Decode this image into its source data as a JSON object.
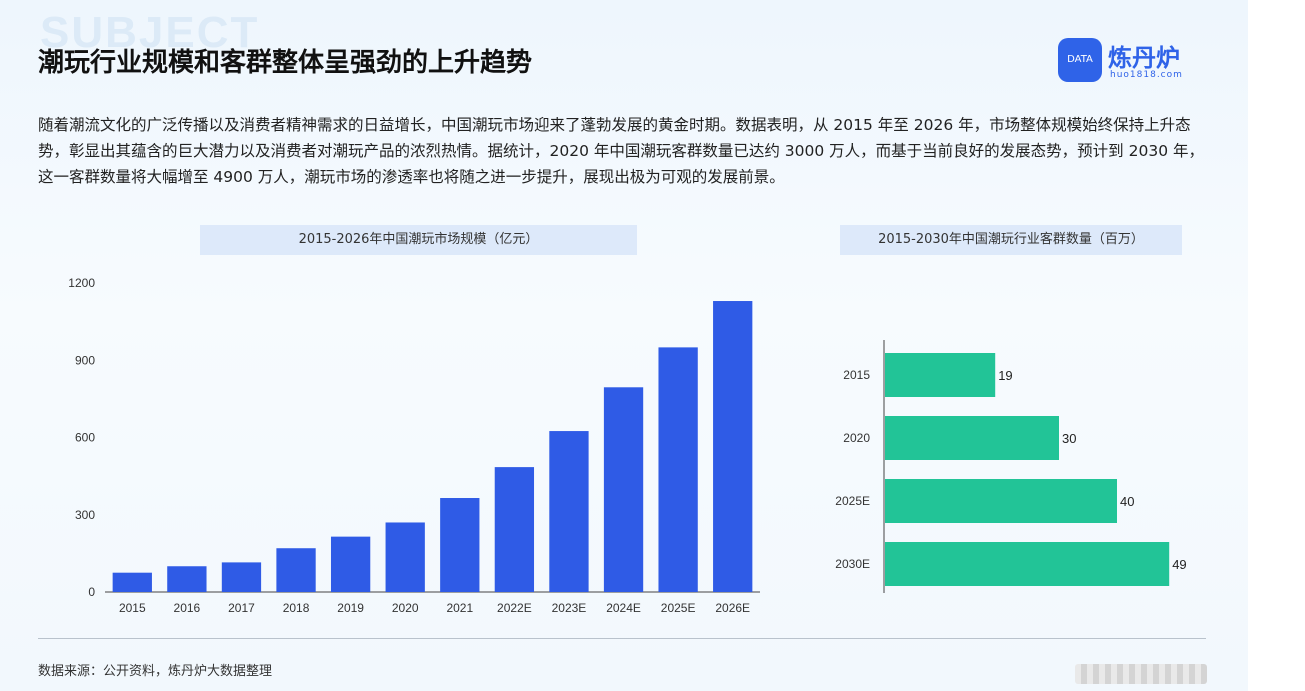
{
  "header": {
    "title": "潮玩行业规模和客群整体呈强劲的上升趋势",
    "bg_word": "SUBJECT"
  },
  "logo": {
    "badge": "DATA",
    "name": "炼丹炉",
    "url": "huo1818.com"
  },
  "intro": "随着潮流文化的广泛传播以及消费者精神需求的日益增长，中国潮玩市场迎来了蓬勃发展的黄金时期。数据表明，从 2015 年至 2026 年，市场整体规模始终保持上升态势，彰显出其蕴含的巨大潜力以及消费者对潮玩产品的浓烈热情。据统计，2020 年中国潮玩客群数量已达约 3000 万人，而基于当前良好的发展态势，预计到 2030 年，这一客群数量将大幅增至 4900 万人，潮玩市场的渗透率也将随之进一步提升，展现出极为可观的发展前景。",
  "footer": {
    "source": "数据来源：公开资料，炼丹炉大数据整理"
  },
  "colors": {
    "bar": "#2f5be6",
    "hbar": "#22c497",
    "brand": "#2f63e8"
  },
  "chart_data": [
    {
      "type": "bar",
      "title": "2015-2026年中国潮玩市场规模（亿元）",
      "categories": [
        "2015",
        "2016",
        "2017",
        "2018",
        "2019",
        "2020",
        "2021",
        "2022E",
        "2023E",
        "2024E",
        "2025E",
        "2026E"
      ],
      "values": [
        75,
        100,
        115,
        170,
        215,
        270,
        365,
        485,
        625,
        795,
        950,
        1130
      ],
      "ylim": [
        0,
        1200
      ],
      "yticks": [
        0,
        300,
        600,
        900,
        1200
      ],
      "grid": false,
      "xlabel": "",
      "ylabel": ""
    },
    {
      "type": "bar",
      "orientation": "horizontal",
      "title": "2015-2030年中国潮玩行业客群数量（百万）",
      "categories": [
        "2015",
        "2020",
        "2025E",
        "2030E"
      ],
      "values": [
        19,
        30,
        40,
        49
      ],
      "xlim": [
        0,
        50
      ],
      "grid": false,
      "xlabel": "",
      "ylabel": ""
    }
  ]
}
